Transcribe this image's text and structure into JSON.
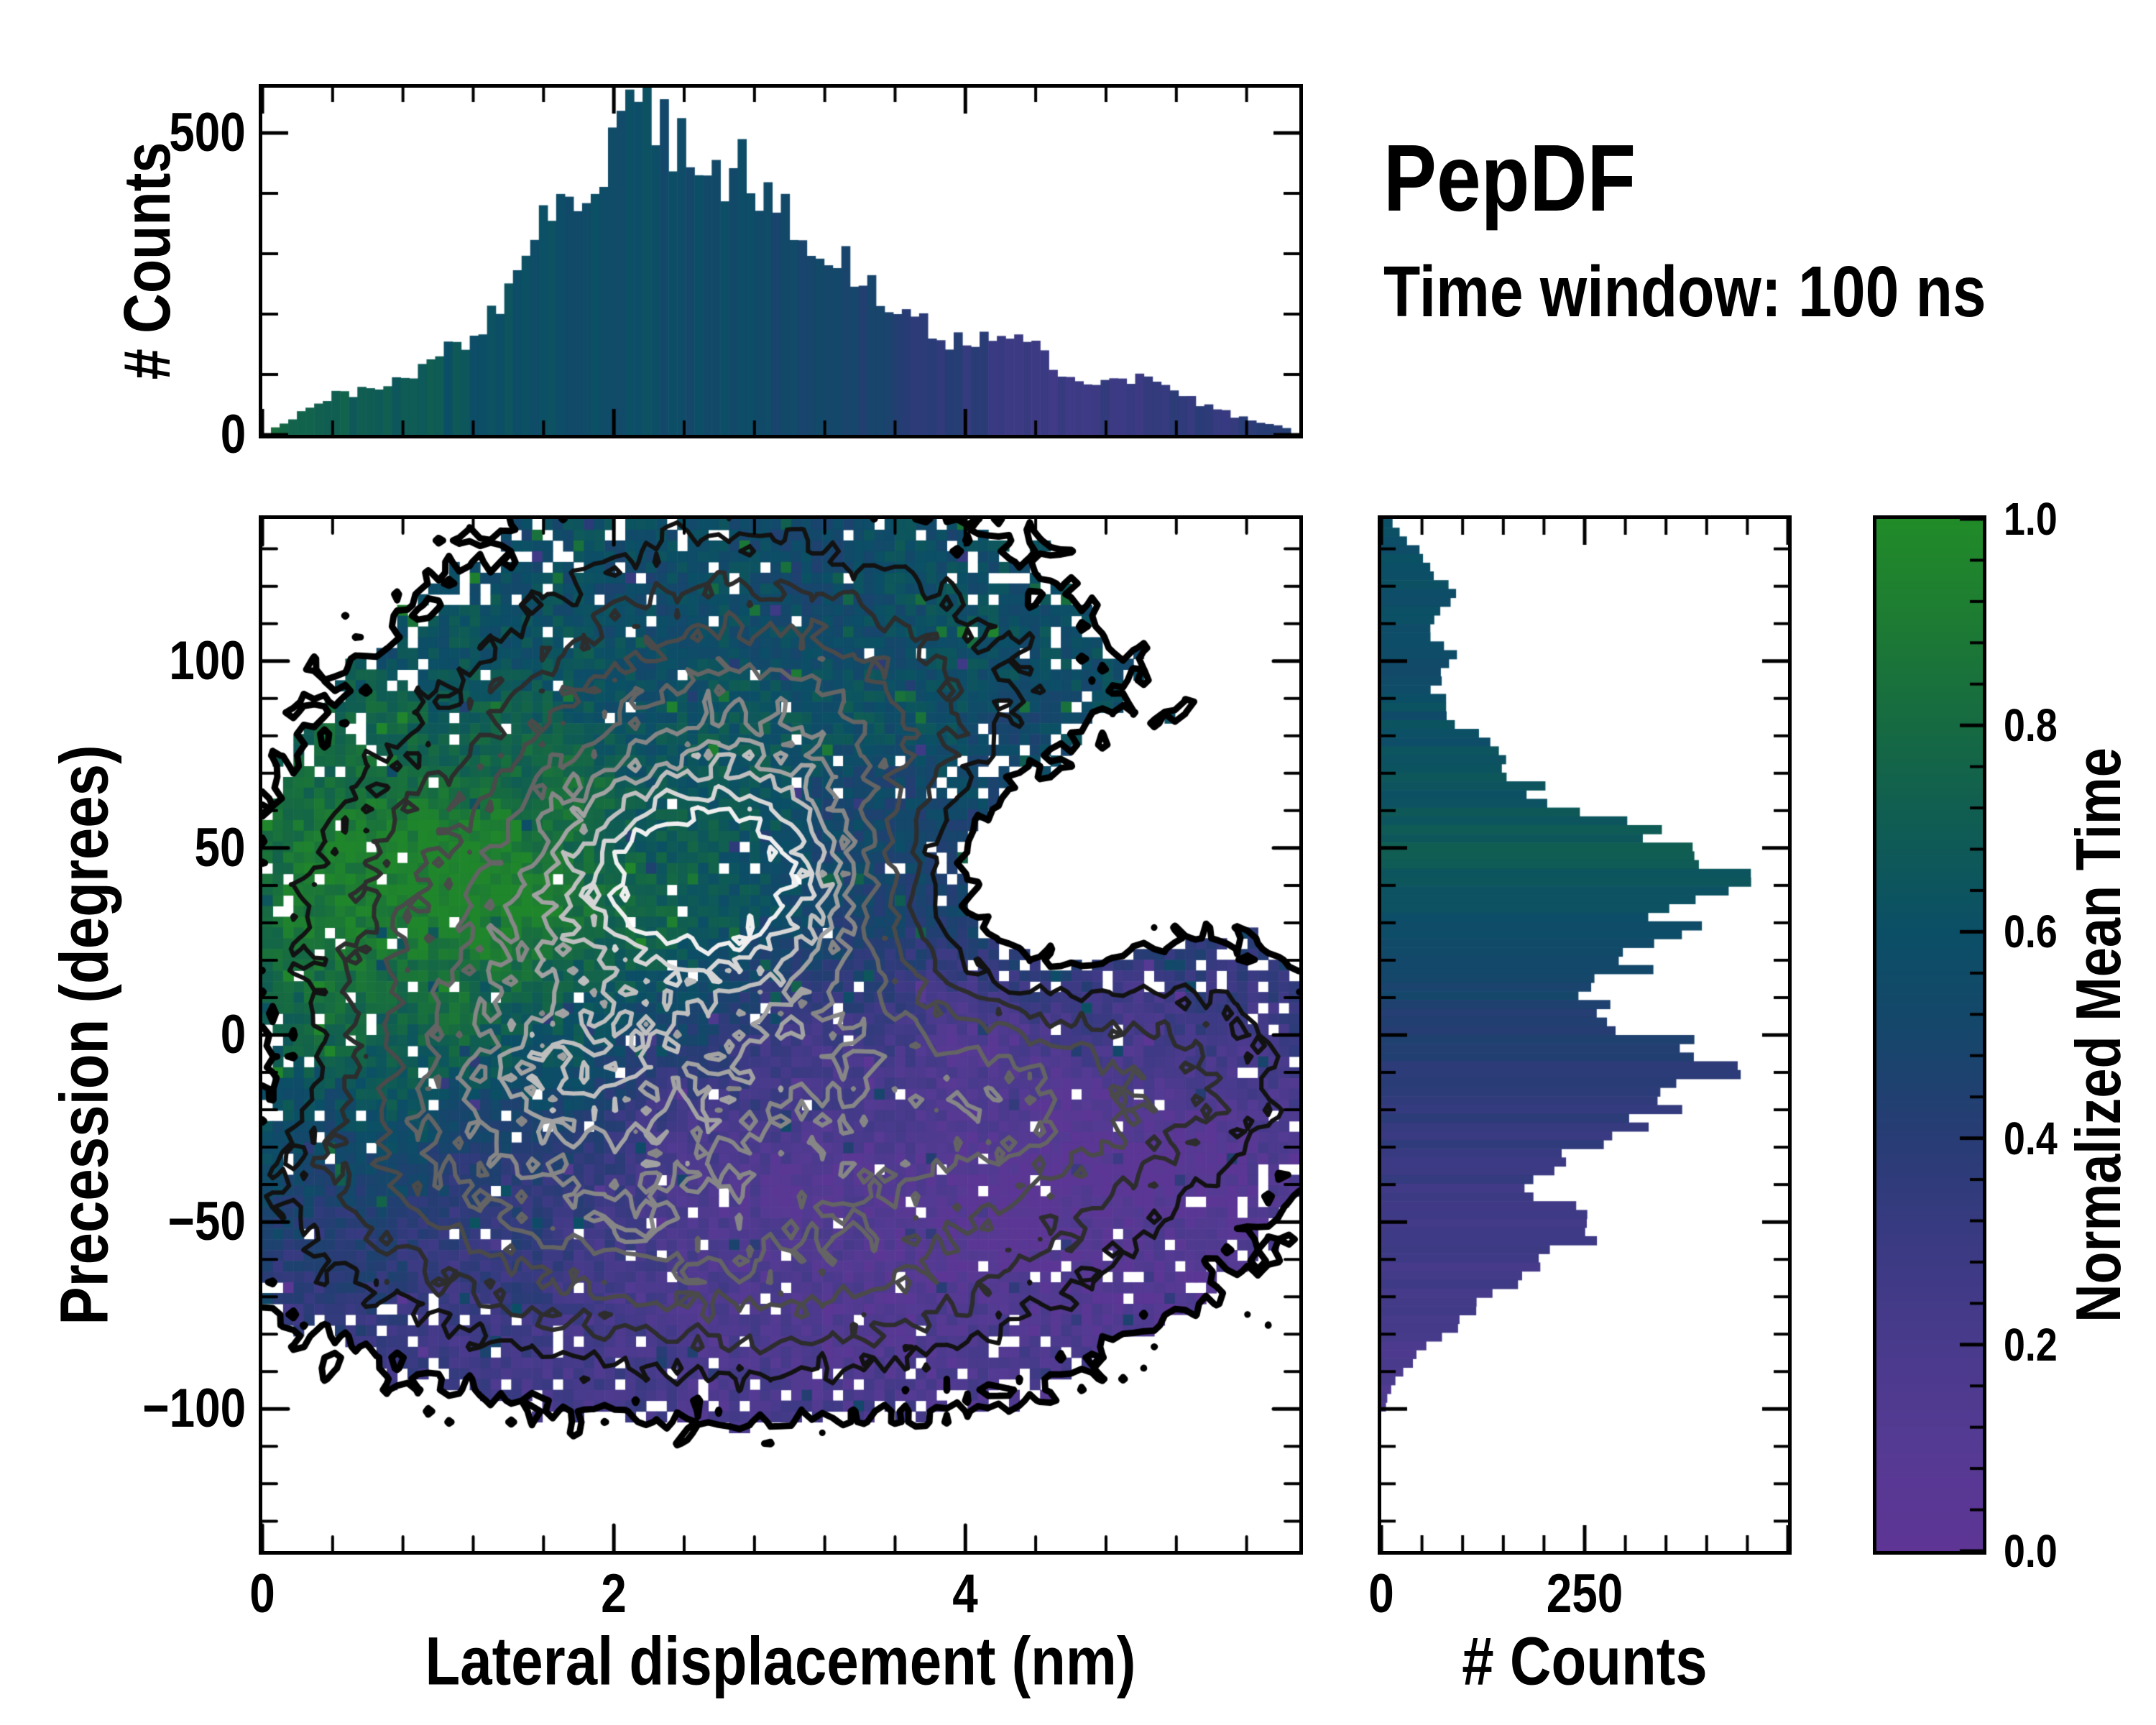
{
  "title": {
    "main": "PepDF",
    "subtitle": "Time window: 100 ns"
  },
  "labels": {
    "top_counts": "# Counts",
    "right_counts": "# Counts",
    "xlabel": "Lateral displacement (nm)",
    "ylabel": "Precession (degrees)",
    "cbar": "Normalized Mean Time"
  },
  "axes": {
    "xlim": [
      0,
      5.9
    ],
    "ylim": [
      -138,
      138
    ],
    "xtick_values": [
      0,
      2,
      4
    ],
    "xtick_labels": [
      "0",
      "2",
      "4"
    ],
    "ytick_values": [
      100,
      50,
      0,
      -50,
      -100
    ],
    "ytick_labels": [
      "100",
      "50",
      "0",
      "−50",
      "−100"
    ],
    "x_minor_step": 0.4,
    "y_minor_step": 10
  },
  "colorbar": {
    "label": "Normalized Mean Time",
    "tick_values": [
      1.0,
      0.8,
      0.6,
      0.4,
      0.2,
      0.0
    ],
    "tick_labels": [
      "1.0",
      "0.8",
      "0.6",
      "0.4",
      "0.2",
      "0.0"
    ],
    "minor_step": 0.04,
    "range": [
      0.0,
      1.0
    ]
  },
  "chart_data": [
    {
      "type": "heatmap",
      "title": "PepDF",
      "subtitle": "Time window: 100 ns",
      "xlabel": "Lateral displacement (nm)",
      "ylabel": "Precession (degrees)",
      "color_label": "Normalized Mean Time",
      "xlim": [
        0,
        5.9
      ],
      "ylim": [
        -138,
        138
      ],
      "grid": {
        "nx": 100,
        "ny": 96
      },
      "colormap_stops": [
        [
          0.0,
          "#5e3595"
        ],
        [
          0.1,
          "#553a93"
        ],
        [
          0.2,
          "#493a8c"
        ],
        [
          0.3,
          "#3a3a82"
        ],
        [
          0.4,
          "#283c75"
        ],
        [
          0.5,
          "#16466b"
        ],
        [
          0.6,
          "#0b4f66"
        ],
        [
          0.7,
          "#0f5c54"
        ],
        [
          0.8,
          "#166a42"
        ],
        [
          0.9,
          "#1d7b33"
        ],
        [
          1.0,
          "#218b28"
        ]
      ],
      "density_components": [
        [
          2.55,
          40,
          1.05,
          42,
          0.95
        ],
        [
          1.05,
          30,
          0.95,
          40,
          0.4
        ],
        [
          2.5,
          -38,
          1.35,
          36,
          0.62
        ],
        [
          4.25,
          -18,
          1.05,
          38,
          0.52
        ],
        [
          2.6,
          102,
          1.0,
          38,
          0.44
        ],
        [
          0.8,
          -28,
          0.75,
          32,
          0.44
        ],
        [
          2.8,
          -72,
          1.1,
          18,
          0.3
        ],
        [
          5.35,
          -8,
          0.55,
          22,
          0.26
        ],
        [
          3.95,
          85,
          0.95,
          28,
          0.32
        ],
        [
          1.85,
          -12,
          0.4,
          14,
          0.2
        ],
        [
          2.0,
          -48,
          0.45,
          14,
          0.16
        ],
        [
          4.35,
          -15,
          0.45,
          16,
          0.2
        ],
        [
          4.35,
          42,
          0.55,
          26,
          -0.6
        ],
        [
          2.55,
          42,
          0.5,
          16,
          0.55
        ],
        [
          0.15,
          -8,
          0.42,
          18,
          -0.28
        ]
      ],
      "value_base_p": [
        -138,
        -100,
        -80,
        -60,
        -45,
        -30,
        -20,
        -10,
        0,
        10,
        20,
        30,
        45,
        60,
        80,
        110,
        138
      ],
      "value_base_v": [
        0.24,
        0.26,
        0.28,
        0.3,
        0.32,
        0.35,
        0.38,
        0.41,
        0.44,
        0.48,
        0.52,
        0.55,
        0.57,
        0.58,
        0.58,
        0.57,
        0.56
      ],
      "value_bumps": [
        [
          0.95,
          33,
          1.05,
          36,
          0.42
        ],
        [
          4.3,
          -30,
          1.45,
          48,
          -0.3
        ],
        [
          0.5,
          -35,
          0.8,
          25,
          0.14
        ]
      ],
      "contour_levels": [
        [
          0.2,
          "#000000",
          9
        ],
        [
          0.42,
          "#121212",
          6
        ],
        [
          0.6,
          "#2d2d2d",
          6
        ],
        [
          0.78,
          "#4a4a4a",
          6
        ],
        [
          0.95,
          "#646464",
          6
        ],
        [
          1.1,
          "#868686",
          6
        ],
        [
          1.22,
          "#a2a2a2",
          6
        ],
        [
          1.32,
          "#bebebe",
          6
        ],
        [
          1.44,
          "#d6d6d6",
          6
        ],
        [
          1.58,
          "#efefef",
          6
        ]
      ],
      "fill_threshold": 0.2,
      "seed": 1337
    },
    {
      "type": "bar",
      "name": "top-marginal-histogram",
      "ylabel": "# Counts",
      "ylim": [
        0,
        575
      ],
      "ytick_values": [
        0,
        500
      ],
      "ytick_labels": [
        "0",
        "500"
      ],
      "y_minor_ticks": [
        100,
        200,
        300,
        400
      ],
      "bins": 120,
      "x": [
        0.05,
        0.15,
        0.3,
        0.45,
        0.55,
        0.7,
        0.85,
        1.0,
        1.1,
        1.2,
        1.35,
        1.5,
        1.6,
        1.7,
        1.8,
        1.9,
        2.0,
        2.1,
        2.2,
        2.3,
        2.4,
        2.5,
        2.6,
        2.7,
        2.8,
        2.9,
        3.0,
        3.1,
        3.25,
        3.4,
        3.5,
        3.65,
        3.8,
        3.95,
        4.1,
        4.25,
        4.4,
        4.55,
        4.7,
        4.85,
        5.0,
        5.15,
        5.3,
        5.5,
        5.7,
        5.85
      ],
      "counts": [
        8,
        25,
        55,
        75,
        70,
        85,
        100,
        130,
        155,
        165,
        215,
        300,
        340,
        390,
        420,
        445,
        470,
        520,
        505,
        500,
        480,
        445,
        425,
        445,
        430,
        400,
        370,
        345,
        310,
        265,
        235,
        205,
        175,
        155,
        160,
        165,
        140,
        110,
        90,
        85,
        95,
        80,
        55,
        35,
        20,
        10
      ],
      "mean_time_x": [
        0.05,
        0.2,
        0.4,
        0.6,
        0.8,
        1.0,
        1.2,
        1.4,
        1.6,
        1.8,
        2.0,
        2.2,
        2.4,
        2.6,
        2.8,
        3.0,
        3.2,
        3.4,
        3.6,
        3.8,
        4.0,
        4.2,
        4.4,
        4.6,
        4.8,
        5.0,
        5.2,
        5.4,
        5.6,
        5.85
      ],
      "mean_time_v": [
        0.78,
        0.74,
        0.7,
        0.72,
        0.68,
        0.66,
        0.62,
        0.6,
        0.59,
        0.58,
        0.58,
        0.57,
        0.56,
        0.55,
        0.54,
        0.52,
        0.5,
        0.47,
        0.44,
        0.4,
        0.37,
        0.34,
        0.3,
        0.27,
        0.3,
        0.33,
        0.35,
        0.36,
        0.37,
        0.38
      ]
    },
    {
      "type": "bar",
      "name": "right-marginal-histogram",
      "xlabel": "# Counts",
      "xlim": [
        0,
        500
      ],
      "xtick_values": [
        0,
        250
      ],
      "xtick_labels": [
        "0",
        "250"
      ],
      "x_minor_step": 50,
      "bins": 118,
      "p": [
        -101,
        -97,
        -93,
        -89,
        -85,
        -81,
        -77,
        -73,
        -69,
        -65,
        -61,
        -58,
        -55,
        -52,
        -49,
        -46,
        -43,
        -40,
        -37,
        -34,
        -31,
        -28,
        -25,
        -22,
        -19,
        -16,
        -13,
        -10,
        -7,
        -4,
        -1,
        2,
        5,
        8,
        11,
        14,
        17,
        20,
        23,
        26,
        29,
        32,
        35,
        38,
        41,
        44,
        47,
        52,
        57,
        62,
        67,
        72,
        77,
        82,
        87,
        92,
        97,
        102,
        107,
        112,
        117,
        122,
        127,
        132,
        137
      ],
      "counts": [
        4,
        8,
        14,
        30,
        48,
        72,
        95,
        122,
        148,
        172,
        200,
        228,
        252,
        270,
        258,
        225,
        192,
        178,
        188,
        205,
        228,
        262,
        298,
        318,
        340,
        378,
        400,
        428,
        450,
        420,
        380,
        310,
        282,
        298,
        272,
        282,
        302,
        295,
        312,
        330,
        352,
        378,
        405,
        445,
        432,
        448,
        420,
        350,
        285,
        225,
        180,
        155,
        130,
        105,
        85,
        62,
        82,
        88,
        65,
        70,
        88,
        75,
        55,
        35,
        12
      ],
      "mean_time_p": [
        -101,
        -92,
        -84,
        -76,
        -68,
        -60,
        -54,
        -48,
        -42,
        -36,
        -30,
        -24,
        -18,
        -12,
        -6,
        0,
        6,
        12,
        18,
        24,
        30,
        36,
        42,
        48,
        55,
        70,
        85,
        100,
        120,
        137
      ],
      "mean_time_v": [
        0.15,
        0.17,
        0.2,
        0.22,
        0.24,
        0.26,
        0.27,
        0.28,
        0.29,
        0.3,
        0.32,
        0.35,
        0.37,
        0.39,
        0.41,
        0.43,
        0.45,
        0.48,
        0.52,
        0.56,
        0.6,
        0.64,
        0.67,
        0.68,
        0.66,
        0.62,
        0.6,
        0.57,
        0.58,
        0.57
      ]
    }
  ]
}
